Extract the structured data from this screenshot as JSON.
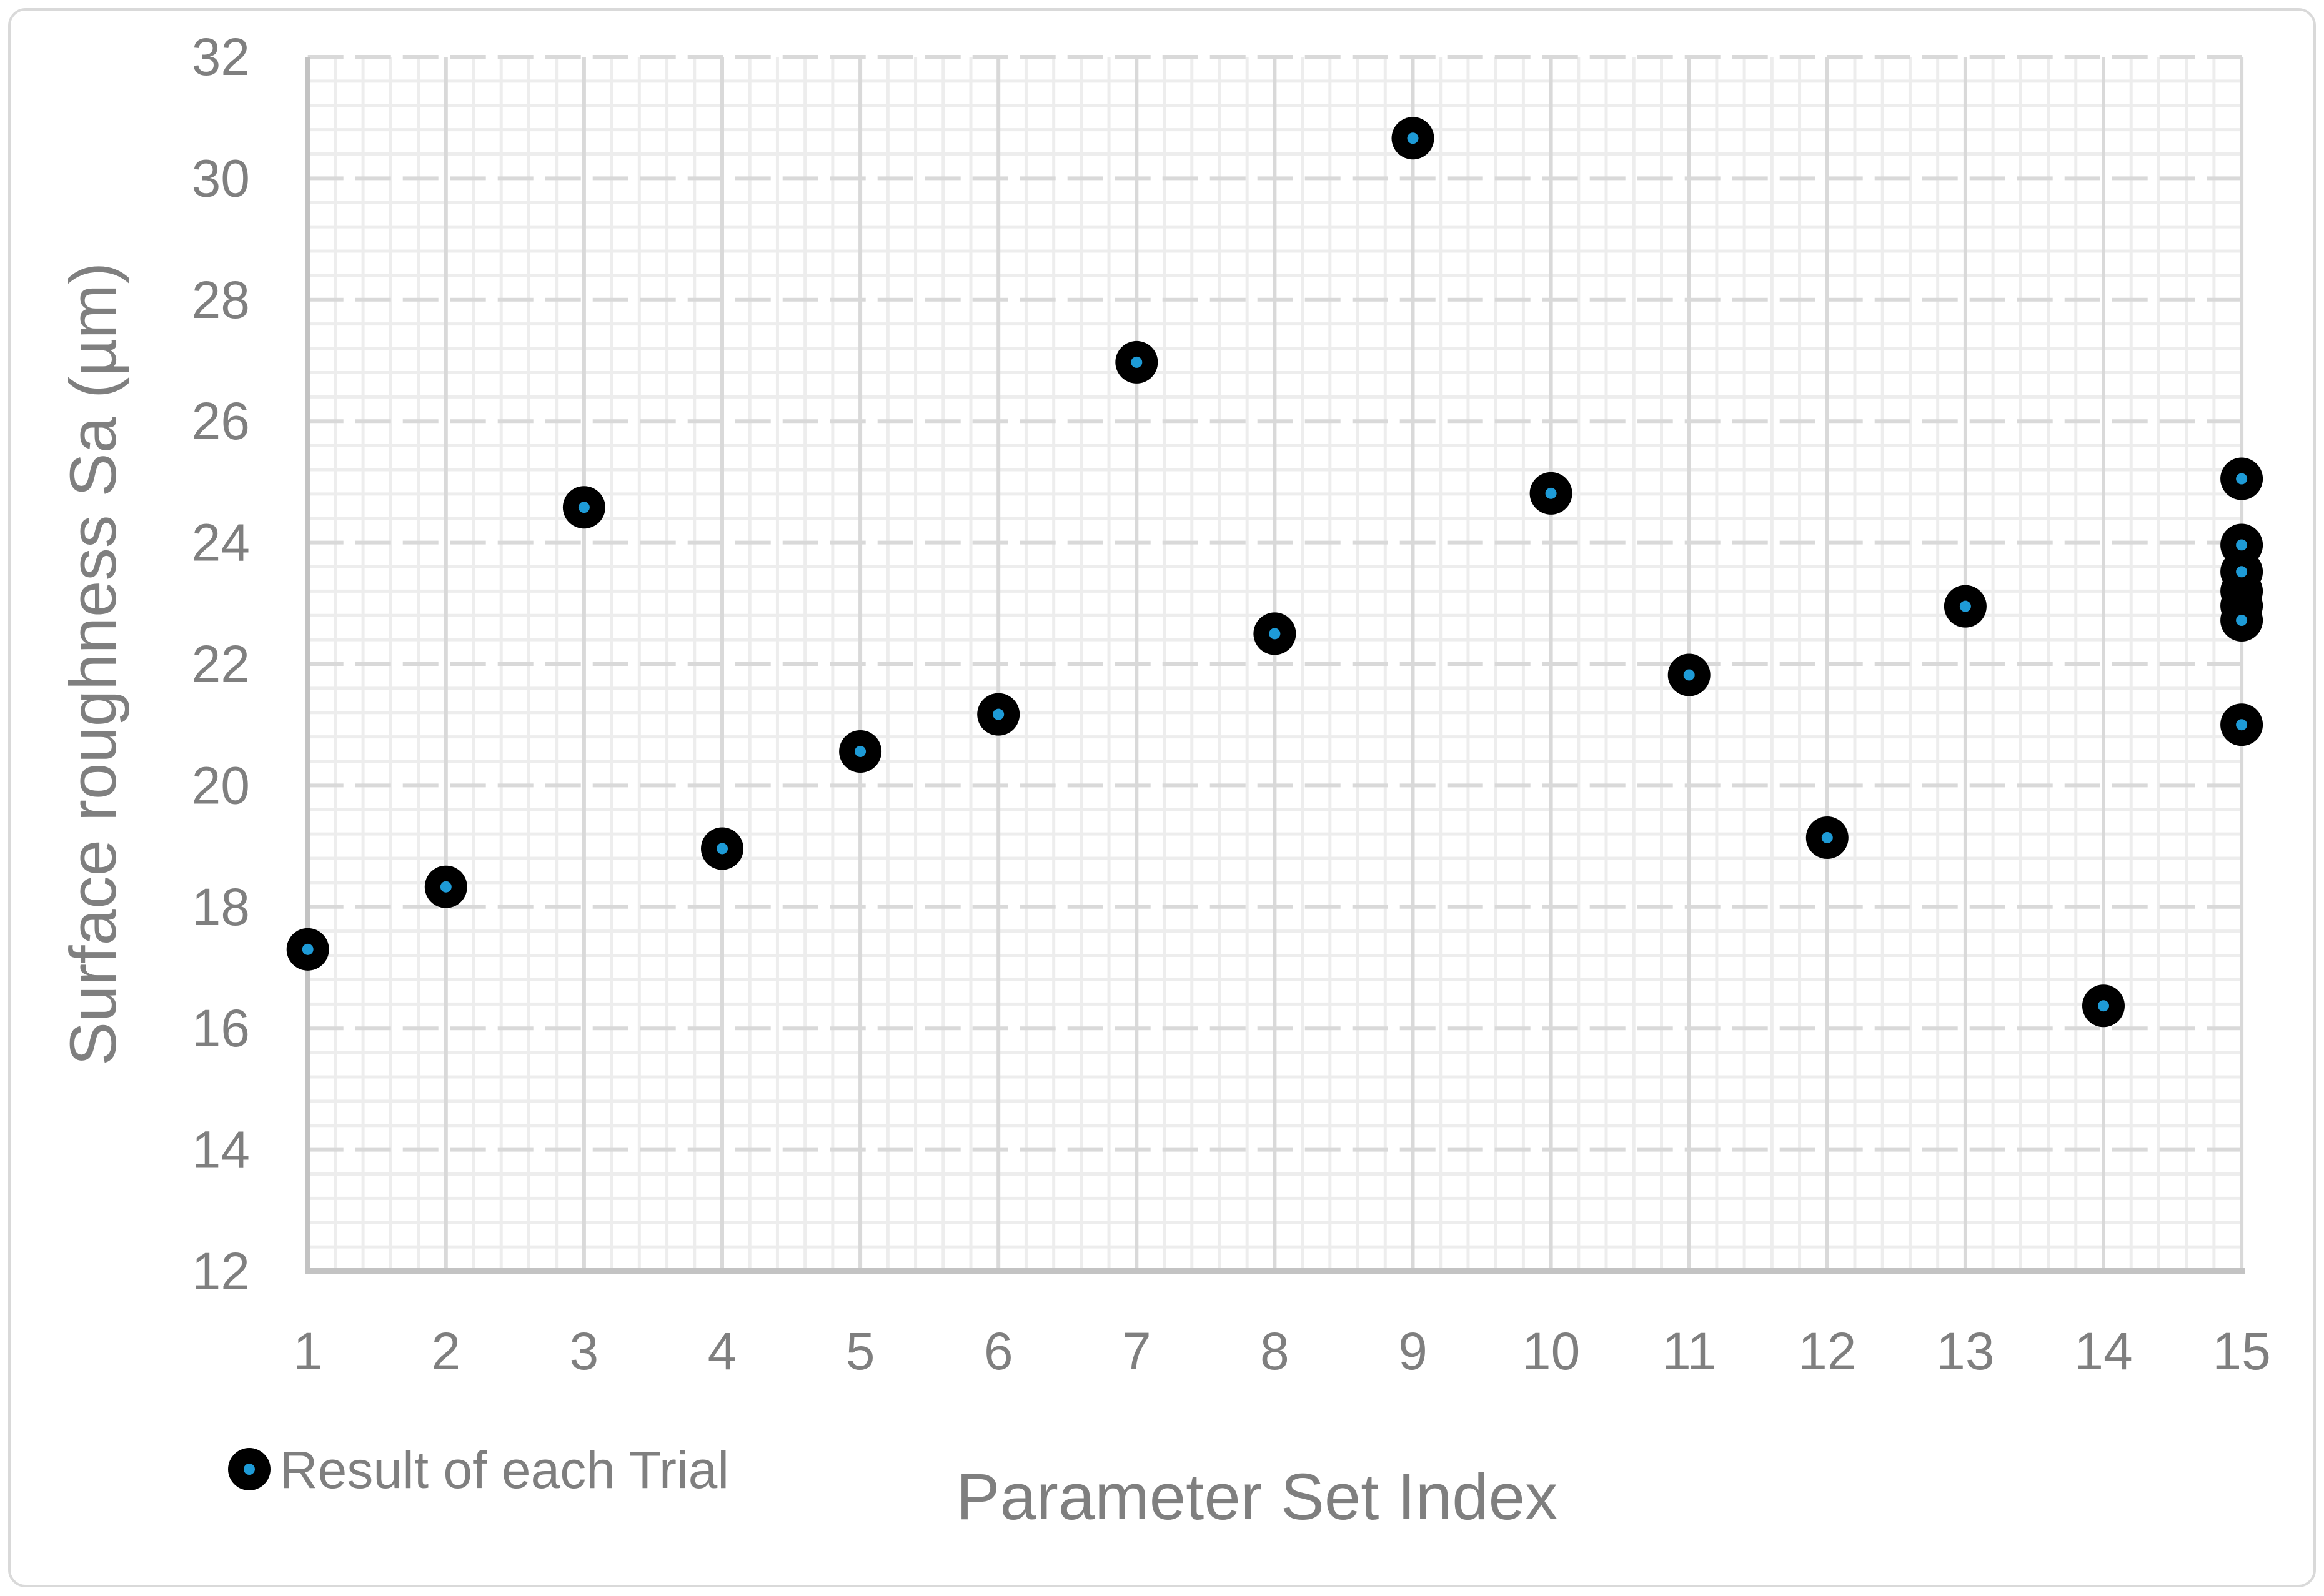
{
  "chart_data": {
    "type": "scatter",
    "title": "",
    "xlabel": "Parameter Set Index",
    "ylabel": "Surface roughness Sa (µm)",
    "legend": {
      "label": "Result of each Trial",
      "position": "bottom-left"
    },
    "xlim": [
      1,
      15
    ],
    "ylim": [
      12,
      32
    ],
    "x_ticks": [
      "1",
      "2",
      "3",
      "4",
      "5",
      "6",
      "7",
      "8",
      "9",
      "10",
      "11",
      "12",
      "13",
      "14",
      "15"
    ],
    "y_ticks": [
      "12",
      "14",
      "16",
      "18",
      "20",
      "22",
      "24",
      "26",
      "28",
      "30",
      "32"
    ],
    "grid": {
      "minor": true,
      "major": true,
      "minor_x_step": 0.2,
      "minor_y_step": 0.4,
      "major_x_step": 1,
      "major_y_step": 2
    },
    "series": [
      {
        "name": "Result of each Trial",
        "marker": "filled-circle-with-center-dot",
        "points": [
          {
            "x": 1,
            "y": 17.3
          },
          {
            "x": 2,
            "y": 18.33
          },
          {
            "x": 3,
            "y": 24.58
          },
          {
            "x": 4,
            "y": 18.96
          },
          {
            "x": 5,
            "y": 20.56
          },
          {
            "x": 6,
            "y": 21.17
          },
          {
            "x": 7,
            "y": 26.97
          },
          {
            "x": 8,
            "y": 22.5
          },
          {
            "x": 9,
            "y": 30.66
          },
          {
            "x": 10,
            "y": 24.81
          },
          {
            "x": 11,
            "y": 21.82
          },
          {
            "x": 12,
            "y": 19.14
          },
          {
            "x": 13,
            "y": 22.95
          },
          {
            "x": 14,
            "y": 16.37
          },
          {
            "x": 15,
            "y": 25.05
          },
          {
            "x": 15,
            "y": 23.96
          },
          {
            "x": 15,
            "y": 23.2
          },
          {
            "x": 15,
            "y": 22.96
          },
          {
            "x": 15,
            "y": 23.52
          },
          {
            "x": 15,
            "y": 22.72
          },
          {
            "x": 15,
            "y": 21.0
          }
        ]
      }
    ],
    "colors": {
      "marker_fill": "#000000",
      "marker_center_dot": "#1E9BD7",
      "text": "#7F7F7F",
      "grid_minor": "#EDEDED",
      "grid_major": "#D9D9D9",
      "axis_line": "#C3C3C3",
      "chart_border": "#D9D9D9",
      "background": "#FFFFFF"
    }
  }
}
